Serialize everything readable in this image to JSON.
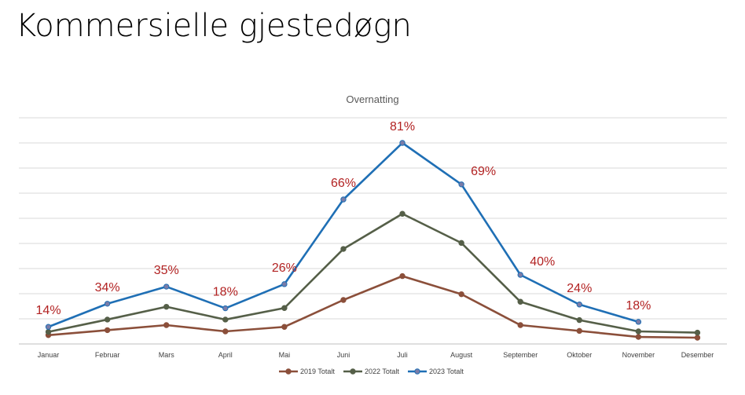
{
  "page": {
    "title": "Kommersielle gjestedøgn"
  },
  "chart_data": {
    "type": "line",
    "title": "Overnatting",
    "xlabel": "",
    "ylabel": "",
    "ylim": [
      0,
      9
    ],
    "grid": true,
    "legend_position": "bottom",
    "categories": [
      "Januar",
      "Februar",
      "Mars",
      "April",
      "Mai",
      "Juni",
      "Juli",
      "August",
      "September",
      "Oktober",
      "November",
      "Desember"
    ],
    "series": [
      {
        "name": "2019 Totalt",
        "color": "#8b4f3a",
        "values": [
          0.35,
          0.55,
          0.75,
          0.5,
          0.68,
          1.75,
          2.7,
          1.98,
          0.75,
          0.52,
          0.28,
          0.25
        ]
      },
      {
        "name": "2022 Totalt",
        "color": "#555f48",
        "values": [
          0.48,
          0.97,
          1.48,
          0.97,
          1.43,
          3.78,
          5.18,
          4.02,
          1.68,
          0.95,
          0.5,
          0.45
        ]
      },
      {
        "name": "2023 Totalt",
        "color": "#1f6fb5",
        "values": [
          0.68,
          1.6,
          2.28,
          1.42,
          2.38,
          5.75,
          8.0,
          6.35,
          2.75,
          1.57,
          0.88,
          null
        ]
      }
    ],
    "annotations": [
      {
        "category": "Januar",
        "text": "14%"
      },
      {
        "category": "Februar",
        "text": "34%"
      },
      {
        "category": "Mars",
        "text": "35%"
      },
      {
        "category": "April",
        "text": "18%"
      },
      {
        "category": "Mai",
        "text": "26%"
      },
      {
        "category": "Juni",
        "text": "66%"
      },
      {
        "category": "Juli",
        "text": "81%"
      },
      {
        "category": "August",
        "text": "69%"
      },
      {
        "category": "September",
        "text": "40%"
      },
      {
        "category": "Oktober",
        "text": "24%"
      },
      {
        "category": "November",
        "text": "18%"
      }
    ],
    "annotation_color": "#b22222"
  }
}
